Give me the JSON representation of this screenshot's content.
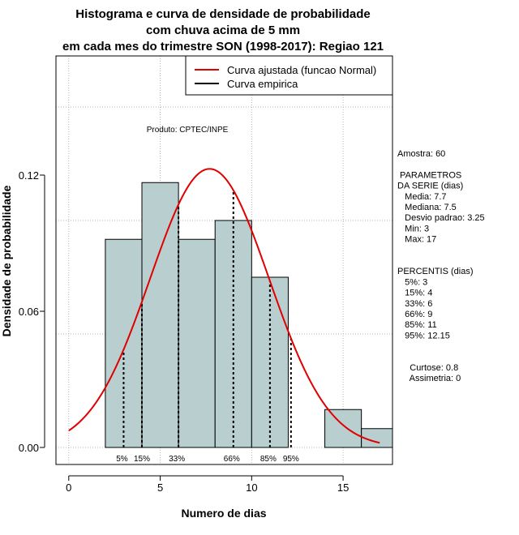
{
  "chart_data": {
    "type": "histogram",
    "title": [
      "Histograma e curva de densidade de probabilidade",
      "com chuva acima de 5 mm",
      "em cada mes do trimestre SON (1998-2017): Regiao 121"
    ],
    "xlabel": "Numero de dias",
    "ylabel": "Densidade de probabilidade",
    "xlim": [
      -0.7,
      17.7
    ],
    "ylim": [
      -0.0075,
      0.1725
    ],
    "xticks": [
      0,
      5,
      10,
      15
    ],
    "yticks": [
      0.0,
      0.06,
      0.12
    ],
    "ytick_labels": [
      "0.00",
      "0.06",
      "0.12"
    ],
    "grid": true,
    "bins": [
      {
        "x0": 2,
        "x1": 4,
        "density": 0.0917
      },
      {
        "x0": 4,
        "x1": 6,
        "density": 0.1167
      },
      {
        "x0": 6,
        "x1": 8,
        "density": 0.0917
      },
      {
        "x0": 8,
        "x1": 10,
        "density": 0.1
      },
      {
        "x0": 10,
        "x1": 12,
        "density": 0.075
      },
      {
        "x0": 12,
        "x1": 14,
        "density": 0
      },
      {
        "x0": 14,
        "x1": 16,
        "density": 0.0167
      },
      {
        "x0": 16,
        "x1": 18,
        "density": 0.0083
      }
    ],
    "normal_fit": {
      "mean": 7.7,
      "sd": 3.25,
      "x_range": [
        0,
        17
      ]
    },
    "percentile_markers": [
      {
        "label": "5%",
        "x": 3
      },
      {
        "label": "15%",
        "x": 4
      },
      {
        "label": "33%",
        "x": 6
      },
      {
        "label": "66%",
        "x": 9
      },
      {
        "label": "85%",
        "x": 11
      },
      {
        "label": "95%",
        "x": 12.15
      }
    ],
    "legend": {
      "position": "top-right",
      "entries": [
        {
          "label": "Curva ajustada (funcao Normal)",
          "color": "#e00000"
        },
        {
          "label": "Curva empirica",
          "color": "#000000"
        }
      ]
    },
    "annotation": "Produto: CPTEC/INPE",
    "colors": {
      "bar_fill": "#b9cfcf",
      "bar_stroke": "#000000",
      "curve": "#e00000",
      "grid": "#b4b4b4"
    }
  },
  "side_panel": {
    "lines": [
      "Amostra: 60",
      "",
      " PARAMETROS",
      "DA SERIE (dias)",
      "   Media: 7.7",
      "   Mediana: 7.5",
      "   Desvio padrao: 3.25",
      "   Min: 3",
      "   Max: 17",
      "",
      "",
      "PERCENTIS (dias)",
      "   5%: 3",
      "   15%: 4",
      "   33%: 6",
      "   66%: 9",
      "   85%: 11",
      "   95%: 12.15",
      "",
      "",
      "     Curtose: 0.8",
      "     Assimetria: 0"
    ]
  }
}
